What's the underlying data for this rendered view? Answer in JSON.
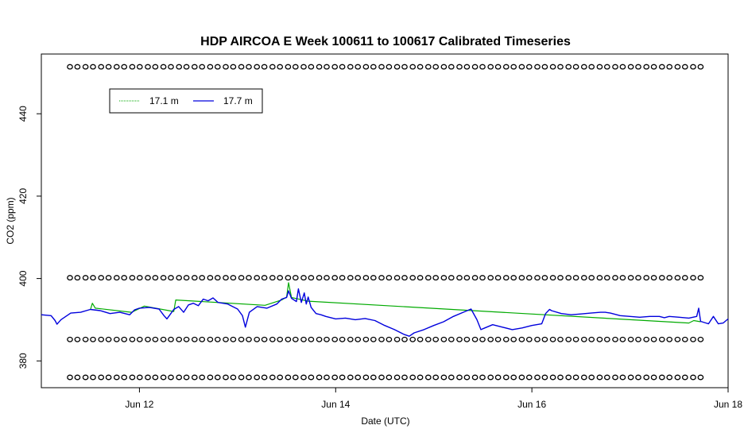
{
  "chart_data": {
    "type": "line",
    "title": "HDP AIRCOA E  Week 100611 to 100617  Calibrated Timeseries",
    "xlabel": "Date (UTC)",
    "ylabel": "CO2 (ppm)",
    "xlim": [
      11.0,
      18.0
    ],
    "ylim": [
      373.5,
      454.5
    ],
    "x_ticks": [
      {
        "value": 12,
        "label": "Jun 12"
      },
      {
        "value": 14,
        "label": "Jun 14"
      },
      {
        "value": 16,
        "label": "Jun 16"
      },
      {
        "value": 18,
        "label": "Jun 18"
      }
    ],
    "y_ticks": [
      {
        "value": 380,
        "label": "380"
      },
      {
        "value": 400,
        "label": "400"
      },
      {
        "value": 420,
        "label": "420"
      },
      {
        "value": 440,
        "label": "440"
      }
    ],
    "legend_position": "top-left",
    "series": [
      {
        "name": "17.1 m",
        "color": "#00aa00",
        "points": [
          [
            11.5,
            392.4
          ],
          [
            11.52,
            394.0
          ],
          [
            11.55,
            392.8
          ],
          [
            11.92,
            391.8
          ],
          [
            12.05,
            393.3
          ],
          [
            12.35,
            392.0
          ],
          [
            12.37,
            394.8
          ],
          [
            13.28,
            393.5
          ],
          [
            13.45,
            394.8
          ],
          [
            13.5,
            395.5
          ],
          [
            13.52,
            399.0
          ],
          [
            13.55,
            395.4
          ],
          [
            13.72,
            394.5
          ],
          [
            17.6,
            389.2
          ],
          [
            17.65,
            389.8
          ],
          [
            17.72,
            389.5
          ]
        ]
      },
      {
        "name": "17.7 m",
        "color": "#0000dd",
        "points": [
          [
            11.0,
            391.2
          ],
          [
            11.1,
            391.0
          ],
          [
            11.14,
            389.8
          ],
          [
            11.16,
            388.9
          ],
          [
            11.2,
            390.0
          ],
          [
            11.3,
            391.6
          ],
          [
            11.4,
            391.8
          ],
          [
            11.5,
            392.5
          ],
          [
            11.6,
            392.2
          ],
          [
            11.7,
            391.5
          ],
          [
            11.8,
            391.8
          ],
          [
            11.9,
            391.2
          ],
          [
            11.95,
            392.4
          ],
          [
            12.0,
            392.8
          ],
          [
            12.1,
            393.0
          ],
          [
            12.2,
            392.6
          ],
          [
            12.25,
            391.0
          ],
          [
            12.28,
            390.2
          ],
          [
            12.32,
            391.5
          ],
          [
            12.35,
            392.5
          ],
          [
            12.4,
            393.2
          ],
          [
            12.45,
            391.8
          ],
          [
            12.5,
            393.6
          ],
          [
            12.55,
            394.0
          ],
          [
            12.6,
            393.4
          ],
          [
            12.65,
            395.0
          ],
          [
            12.7,
            394.6
          ],
          [
            12.75,
            395.3
          ],
          [
            12.8,
            394.2
          ],
          [
            12.9,
            393.8
          ],
          [
            13.0,
            392.6
          ],
          [
            13.05,
            391.0
          ],
          [
            13.08,
            388.2
          ],
          [
            13.12,
            391.8
          ],
          [
            13.2,
            393.2
          ],
          [
            13.3,
            392.8
          ],
          [
            13.4,
            393.8
          ],
          [
            13.45,
            395.0
          ],
          [
            13.5,
            395.4
          ],
          [
            13.52,
            397.0
          ],
          [
            13.55,
            395.2
          ],
          [
            13.6,
            394.4
          ],
          [
            13.62,
            397.5
          ],
          [
            13.65,
            394.2
          ],
          [
            13.68,
            396.5
          ],
          [
            13.7,
            393.8
          ],
          [
            13.72,
            395.5
          ],
          [
            13.75,
            393.0
          ],
          [
            13.8,
            391.5
          ],
          [
            13.85,
            391.2
          ],
          [
            13.9,
            390.8
          ],
          [
            14.0,
            390.2
          ],
          [
            14.1,
            390.4
          ],
          [
            14.2,
            390.0
          ],
          [
            14.3,
            390.3
          ],
          [
            14.4,
            389.8
          ],
          [
            14.5,
            388.6
          ],
          [
            14.6,
            387.6
          ],
          [
            14.7,
            386.4
          ],
          [
            14.75,
            386.0
          ],
          [
            14.8,
            386.8
          ],
          [
            14.9,
            387.6
          ],
          [
            15.0,
            388.6
          ],
          [
            15.1,
            389.5
          ],
          [
            15.2,
            390.8
          ],
          [
            15.3,
            391.8
          ],
          [
            15.38,
            392.6
          ],
          [
            15.44,
            390.0
          ],
          [
            15.48,
            387.6
          ],
          [
            15.52,
            388.0
          ],
          [
            15.6,
            388.8
          ],
          [
            15.7,
            388.2
          ],
          [
            15.8,
            387.6
          ],
          [
            15.9,
            388.0
          ],
          [
            16.0,
            388.6
          ],
          [
            16.1,
            389.0
          ],
          [
            16.14,
            391.5
          ],
          [
            16.18,
            392.5
          ],
          [
            16.2,
            392.2
          ],
          [
            16.3,
            391.5
          ],
          [
            16.4,
            391.2
          ],
          [
            16.5,
            391.4
          ],
          [
            16.6,
            391.6
          ],
          [
            16.7,
            391.8
          ],
          [
            16.75,
            391.8
          ],
          [
            16.8,
            391.6
          ],
          [
            16.9,
            391.0
          ],
          [
            17.0,
            390.8
          ],
          [
            17.1,
            390.6
          ],
          [
            17.2,
            390.8
          ],
          [
            17.3,
            390.8
          ],
          [
            17.35,
            390.5
          ],
          [
            17.4,
            390.8
          ],
          [
            17.5,
            390.6
          ],
          [
            17.6,
            390.4
          ],
          [
            17.68,
            390.8
          ],
          [
            17.7,
            392.8
          ],
          [
            17.72,
            389.6
          ],
          [
            17.8,
            389.0
          ],
          [
            17.85,
            390.8
          ],
          [
            17.9,
            389.0
          ],
          [
            17.95,
            389.2
          ],
          [
            18.0,
            390.2
          ]
        ]
      }
    ],
    "reference_rows": [
      {
        "y": 451.4,
        "marker": "o"
      },
      {
        "y": 400.2,
        "marker": "o"
      },
      {
        "y": 385.2,
        "marker": "o"
      },
      {
        "y": 376.0,
        "marker": "o"
      }
    ],
    "legend": {
      "items": [
        "17.1 m",
        "17.7 m"
      ]
    }
  }
}
